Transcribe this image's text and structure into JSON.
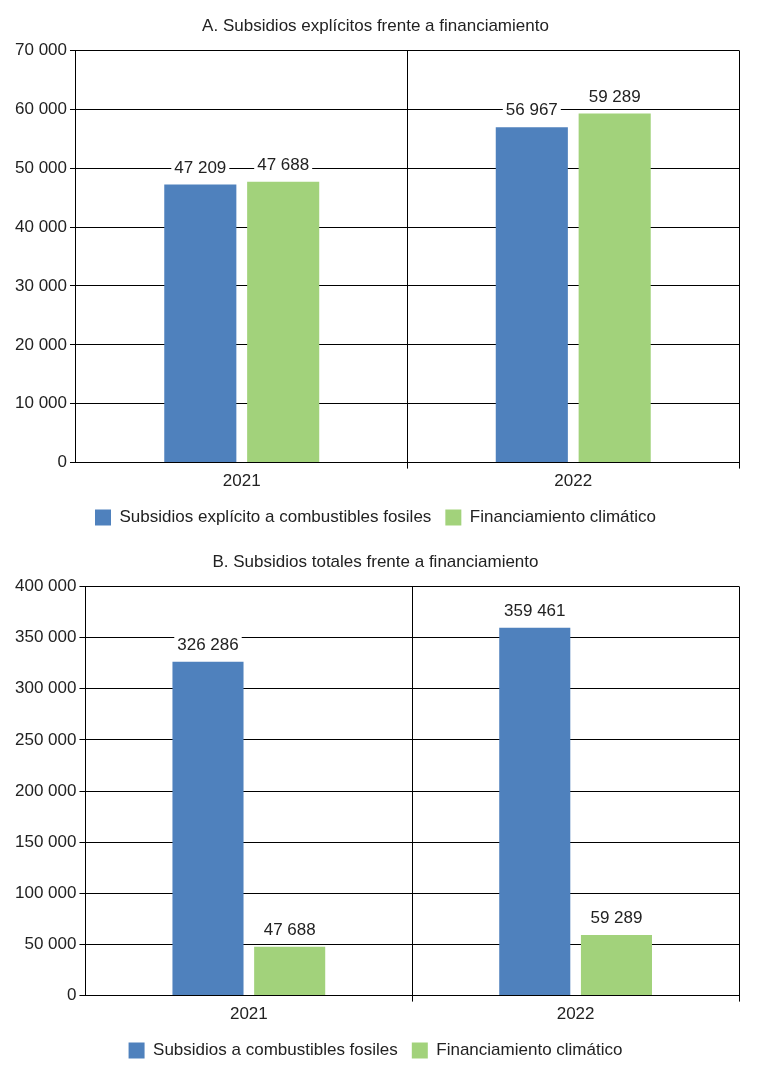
{
  "chart_data": [
    {
      "type": "bar",
      "title": "A. Subsidios explícitos frente a financiamiento",
      "categories": [
        "2021",
        "2022"
      ],
      "ylim": [
        0,
        70000
      ],
      "yticks": [
        {
          "value": 0,
          "label": "0"
        },
        {
          "value": 10000,
          "label": "10 000"
        },
        {
          "value": 20000,
          "label": "20 000"
        },
        {
          "value": 30000,
          "label": "30 000"
        },
        {
          "value": 40000,
          "label": "40 000"
        },
        {
          "value": 50000,
          "label": "50 000"
        },
        {
          "value": 60000,
          "label": "60 000"
        },
        {
          "value": 70000,
          "label": "70 000"
        }
      ],
      "grid": true,
      "legend": "bottom",
      "series": [
        {
          "name": "Subsidios explícito a combustibles fosiles",
          "color": "#4f81bd",
          "values": [
            47209,
            56967
          ],
          "value_labels": [
            "47 209",
            "56 967"
          ]
        },
        {
          "name": "Financiamiento climático",
          "color": "#a2d27b",
          "values": [
            47688,
            59289
          ],
          "value_labels": [
            "47 688",
            "59 289"
          ]
        }
      ]
    },
    {
      "type": "bar",
      "title": "B. Subsidios totales frente a financiamiento",
      "categories": [
        "2021",
        "2022"
      ],
      "ylim": [
        0,
        400000
      ],
      "yticks": [
        {
          "value": 0,
          "label": "0"
        },
        {
          "value": 50000,
          "label": "50 000"
        },
        {
          "value": 100000,
          "label": "100 000"
        },
        {
          "value": 150000,
          "label": "150 000"
        },
        {
          "value": 200000,
          "label": "200 000"
        },
        {
          "value": 250000,
          "label": "250 000"
        },
        {
          "value": 300000,
          "label": "300 000"
        },
        {
          "value": 350000,
          "label": "350 000"
        },
        {
          "value": 400000,
          "label": "400 000"
        }
      ],
      "grid": true,
      "legend": "bottom",
      "series": [
        {
          "name": "Subsidios a combustibles fosiles",
          "color": "#4f81bd",
          "values": [
            326286,
            359461
          ],
          "value_labels": [
            "326 286",
            "359 461"
          ]
        },
        {
          "name": "Financiamiento climático",
          "color": "#a2d27b",
          "values": [
            47688,
            59289
          ],
          "value_labels": [
            "47 688",
            "59 289"
          ]
        }
      ]
    }
  ]
}
